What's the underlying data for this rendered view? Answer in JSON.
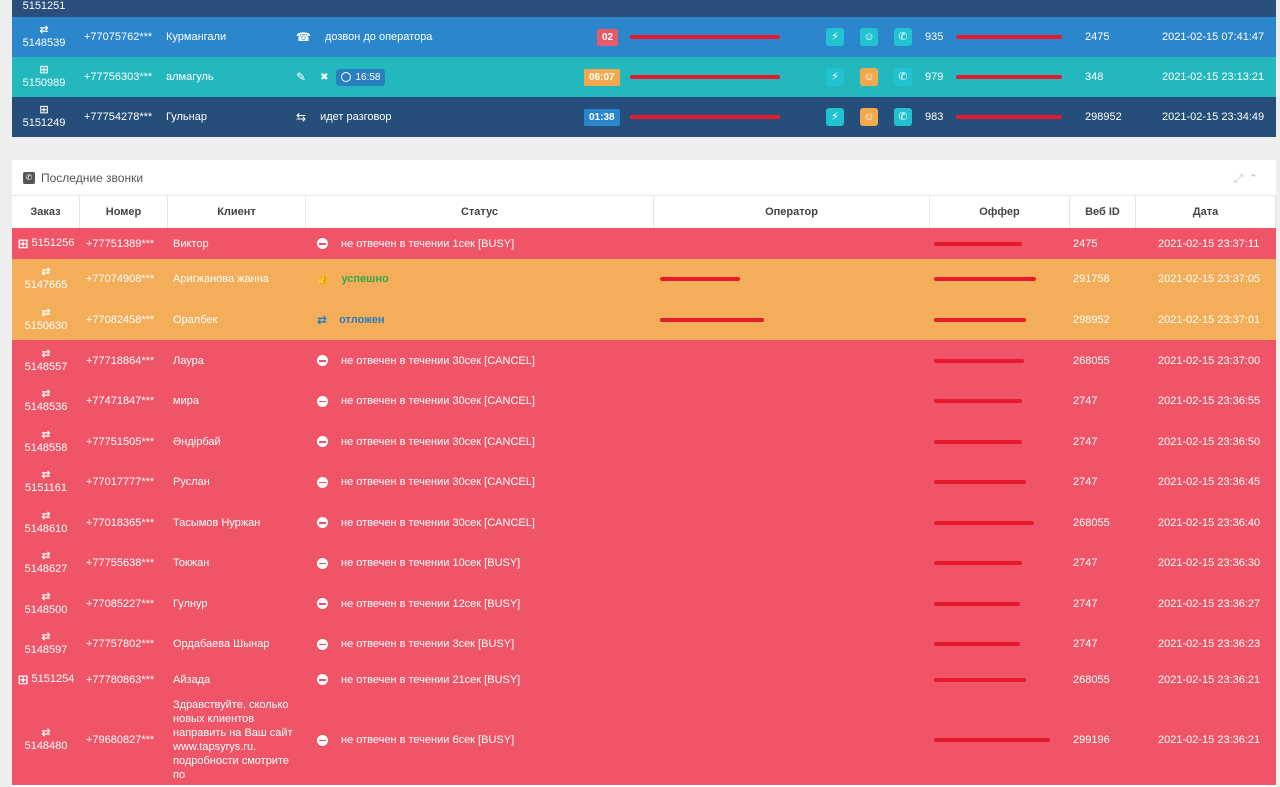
{
  "active_calls": [
    {
      "order": "5151251",
      "order_icon": "retry-icon",
      "status_icon": "",
      "status": "",
      "bg": "#2a4f7c",
      "partial": true
    },
    {
      "order": "5148539",
      "order_icon": "retry-icon",
      "phone": "+77075762***",
      "client": "Курмангали",
      "status_icon": "phone-book-icon",
      "status": "дозвон до оператора",
      "timer": "02",
      "timer_color": "#e85a6a",
      "num": "935",
      "webid": "2475",
      "date": "2021-02-15 07:41:47",
      "bg": "#2b86cc"
    },
    {
      "order": "5150989",
      "order_icon": "plus-box-icon",
      "phone": "+77756303***",
      "client": "алмагуль",
      "status_icon": "edit-icon",
      "clock": "16:58",
      "timer": "06:07",
      "timer_color": "#f4a94e",
      "num": "979",
      "webid": "348",
      "date": "2021-02-15 23:13:21",
      "bg": "#22b8be"
    },
    {
      "order": "5151249",
      "order_icon": "plus-box-icon",
      "phone": "+77754278***",
      "client": "Гульнар",
      "status_icon": "transfer-icon",
      "status": "идет разговор",
      "timer": "01:38",
      "timer_color": "#2a86cc",
      "num": "983",
      "webid": "298952",
      "date": "2021-02-15 23:34:49",
      "bg": "#254e7a"
    }
  ],
  "panel": {
    "title": "Последние звонки",
    "columns": [
      "Заказ",
      "Номер",
      "Клиент",
      "Статус",
      "Оператор",
      "Оффер",
      "Веб ID",
      "Дата"
    ]
  },
  "calls": [
    {
      "order": "5151256",
      "icon": "plus-box-icon",
      "phone": "+77751389***",
      "client": "Виктор",
      "status": "не отвечен в течении 1сек [BUSY]",
      "webid": "2475",
      "date": "2021-02-15 23:37:11",
      "bg": "#ef5566",
      "h": 31,
      "inline": true
    },
    {
      "order": "5147665",
      "icon": "retry-icon",
      "phone": "+77074908***",
      "client": "Аригжанова жанна",
      "status": "успешно",
      "kind": "ok",
      "op": true,
      "webid": "291758",
      "date": "2021-02-15 23:37:05",
      "bg": "#f4ad58",
      "h": 40
    },
    {
      "order": "5150630",
      "icon": "retry-icon",
      "phone": "+77082458***",
      "client": "Оралбек",
      "status": "отложен",
      "kind": "post",
      "op": true,
      "webid": "298952",
      "date": "2021-02-15 23:37:01",
      "bg": "#f4ad58",
      "h": 41
    },
    {
      "order": "5148557",
      "icon": "retry-icon",
      "phone": "+77718864***",
      "client": "Лаура",
      "status": "не отвечен в течении 30сек [CANCEL]",
      "webid": "268055",
      "date": "2021-02-15 23:37:00",
      "bg": "#ef5566",
      "h": 41
    },
    {
      "order": "5148536",
      "icon": "retry-icon",
      "phone": "+77471847***",
      "client": "мира",
      "status": "не отвечен в течении 30сек [CANCEL]",
      "webid": "2747",
      "date": "2021-02-15 23:36:55",
      "bg": "#ef5566",
      "h": 40
    },
    {
      "order": "5148558",
      "icon": "retry-icon",
      "phone": "+77751505***",
      "client": "Әндірбай",
      "status": "не отвечен в течении 30сек [CANCEL]",
      "webid": "2747",
      "date": "2021-02-15 23:36:50",
      "bg": "#ef5566",
      "h": 41
    },
    {
      "order": "5151161",
      "icon": "retry-icon",
      "phone": "+77017777***",
      "client": "Руслан",
      "status": "не отвечен в течении 30сек [CANCEL]",
      "webid": "2747",
      "date": "2021-02-15 23:36:45",
      "bg": "#ef5566",
      "h": 40
    },
    {
      "order": "5148610",
      "icon": "retry-icon",
      "phone": "+77018365***",
      "client": "Тасымов Нуржан",
      "status": "не отвечен в течении 30сек [CANCEL]",
      "webid": "268055",
      "date": "2021-02-15 23:36:40",
      "bg": "#ef5566",
      "h": 41
    },
    {
      "order": "5148627",
      "icon": "retry-icon",
      "phone": "+77755638***",
      "client": "Токжан",
      "status": "не отвечен в течении 10сек [BUSY]",
      "webid": "2747",
      "date": "2021-02-15 23:36:30",
      "bg": "#ef5566",
      "h": 40
    },
    {
      "order": "5148500",
      "icon": "retry-icon",
      "phone": "+77085227***",
      "client": "Гулнур",
      "status": "не отвечен в течении 12сек [BUSY]",
      "webid": "2747",
      "date": "2021-02-15 23:36:27",
      "bg": "#ef5566",
      "h": 41
    },
    {
      "order": "5148597",
      "icon": "retry-icon",
      "phone": "+77757802***",
      "client": "Ордабаева Шынар",
      "status": "не отвечен в течении 3сек [BUSY]",
      "webid": "2747",
      "date": "2021-02-15 23:36:23",
      "bg": "#ef5566",
      "h": 40
    },
    {
      "order": "5151254",
      "icon": "plus-box-icon",
      "phone": "+77780863***",
      "client": "Айзада",
      "status": "не отвечен в течении 21сек [BUSY]",
      "webid": "268055",
      "date": "2021-02-15 23:36:21",
      "bg": "#ef5566",
      "h": 31,
      "inline": true
    },
    {
      "order": "5148480",
      "icon": "retry-icon",
      "phone": "+79680827***",
      "client": "Здравствуйте, сколько новых клиентов направить на Ваш сайт www.tapsyrys.ru. подробности смотрите по",
      "status": "не отвечен в течении 6сек [BUSY]",
      "webid": "299196",
      "date": "2021-02-15 23:36:21",
      "bg": "#ef5566",
      "h": 90
    }
  ]
}
